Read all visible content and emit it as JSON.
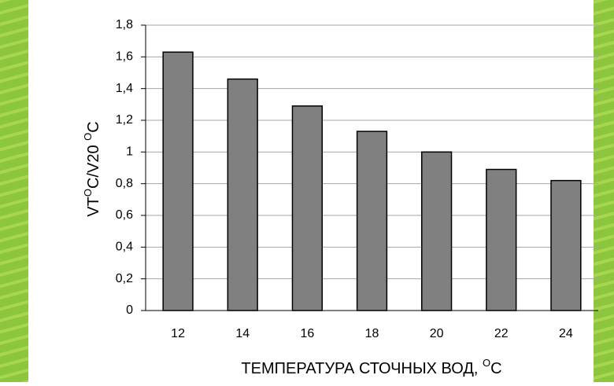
{
  "chart_data": {
    "type": "bar",
    "ylabel": [
      "VT",
      "O",
      "C/V20 ",
      "O",
      "C"
    ],
    "xlabel": [
      "ТЕМПЕРАТУРА СТОЧНЫХ ВОД, ",
      "O",
      "C"
    ],
    "categories": [
      "12",
      "14",
      "16",
      "18",
      "20",
      "22",
      "24"
    ],
    "values": [
      1.63,
      1.46,
      1.29,
      1.13,
      1.0,
      0.89,
      0.82
    ],
    "color": "#808080",
    "ylim": [
      0,
      1.8
    ],
    "yticks": [
      0,
      {
        "value": 0.2,
        "label": "0,2"
      },
      {
        "value": 0.4,
        "label": "0,4"
      },
      {
        "value": 0.6,
        "label": "0,6"
      },
      {
        "value": 0.8,
        "label": "0,8"
      },
      1,
      {
        "value": 1.2,
        "label": "1,2"
      },
      {
        "value": 1.4,
        "label": "1,4"
      },
      {
        "value": 1.6,
        "label": "1,6"
      },
      {
        "value": 1.8,
        "label": "1,8"
      }
    ],
    "grid": true
  }
}
